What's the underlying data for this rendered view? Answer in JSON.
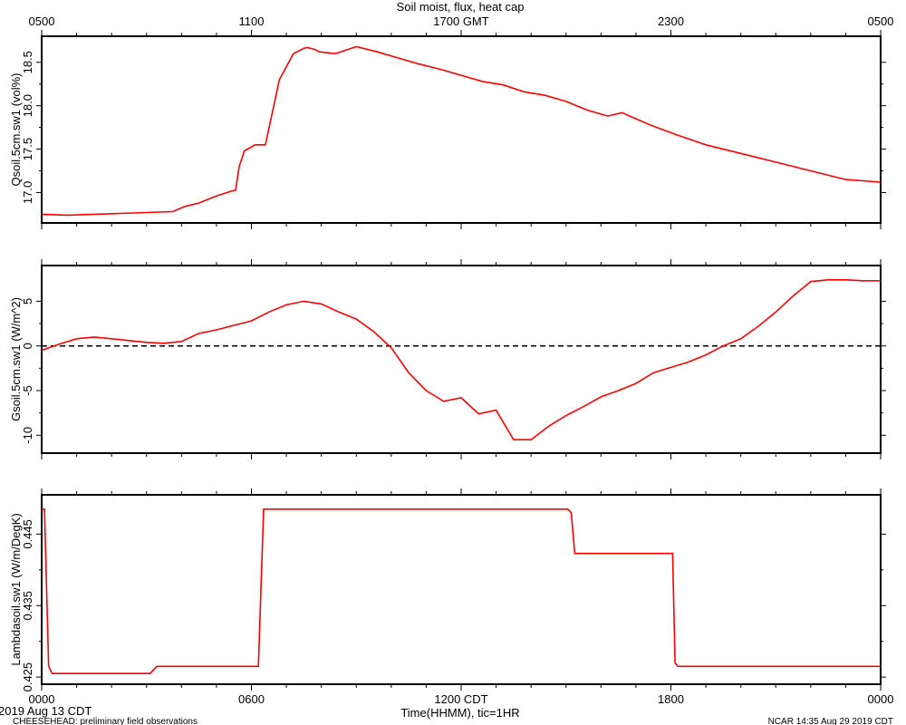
{
  "chart_data": {
    "type": "line",
    "title": "Soil moist, flux, heat cap",
    "top_axis_ticks": [
      "0500",
      "1100",
      "1700 GMT",
      "2300",
      "0500"
    ],
    "bottom_axis_ticks": [
      "0000",
      "0600",
      "1200 CDT",
      "1800",
      "0000"
    ],
    "xlabel": "Time(HHMM), tic=1HR",
    "date_label": "2019 Aug 13 CDT",
    "footer_left": "CHEESEHEAD: preliminary field observations",
    "footer_right": "NCAR 14:35 Aug 29 2019 CDT",
    "line_color": "#ff0000",
    "panels": [
      {
        "ylabel": "Qsoil.5cm.sw1 (vol%)",
        "ylim": [
          16.65,
          18.8
        ],
        "yticks": [
          17.0,
          17.5,
          18.0,
          18.5
        ],
        "ytick_labels": [
          "17.0",
          "17.5",
          "18.0",
          "18.5"
        ],
        "zero_line": false,
        "x": [
          0,
          0.75,
          1.5,
          2.25,
          3.0,
          3.75,
          4.1,
          4.5,
          5.0,
          5.3,
          5.55,
          5.65,
          5.8,
          6.1,
          6.4,
          6.8,
          7.2,
          7.45,
          7.5,
          7.6,
          7.8,
          7.95,
          8.4,
          9.0,
          9.6,
          10.2,
          10.8,
          11.4,
          12.0,
          12.6,
          13.2,
          13.8,
          14.4,
          15.0,
          15.6,
          16.2,
          16.6,
          17.4,
          18.2,
          19.0,
          20.0,
          21.0,
          22.0,
          23.0,
          24.0
        ],
        "y": [
          16.75,
          16.74,
          16.75,
          16.76,
          16.77,
          16.78,
          16.84,
          16.88,
          16.96,
          17.0,
          17.03,
          17.3,
          17.48,
          17.55,
          17.55,
          18.3,
          18.6,
          18.65,
          18.66,
          18.67,
          18.65,
          18.62,
          18.6,
          18.68,
          18.62,
          18.55,
          18.48,
          18.42,
          18.35,
          18.28,
          18.24,
          18.16,
          18.12,
          18.05,
          17.95,
          17.88,
          17.92,
          17.78,
          17.66,
          17.55,
          17.45,
          17.35,
          17.25,
          17.15,
          17.12
        ]
      },
      {
        "ylabel": "Gsoil.5cm.sw1 (W/m^2)",
        "ylim": [
          -12.0,
          9.0
        ],
        "yticks": [
          -10,
          -5,
          0,
          5
        ],
        "ytick_labels": [
          "-10",
          "-5",
          "0",
          "5"
        ],
        "zero_line": true,
        "x": [
          0,
          0.5,
          1.0,
          1.5,
          2.0,
          2.5,
          3.0,
          3.5,
          4.0,
          4.5,
          5.0,
          5.5,
          6.0,
          6.5,
          7.0,
          7.5,
          8.0,
          8.5,
          9.0,
          9.5,
          10.0,
          10.5,
          11.0,
          11.5,
          12.0,
          12.5,
          13.0,
          13.5,
          14.0,
          14.5,
          15.0,
          15.5,
          16.0,
          16.5,
          17.0,
          17.5,
          18.0,
          18.5,
          19.0,
          19.5,
          20.0,
          20.5,
          21.0,
          21.5,
          22.0,
          22.5,
          23.0,
          23.5,
          24.0
        ],
        "y": [
          -0.5,
          0.2,
          0.8,
          1.0,
          0.8,
          0.6,
          0.4,
          0.3,
          0.5,
          1.4,
          1.8,
          2.3,
          2.8,
          3.8,
          4.6,
          5.0,
          4.7,
          3.8,
          3.0,
          1.6,
          -0.2,
          -3.0,
          -5.0,
          -6.2,
          -5.8,
          -7.6,
          -7.2,
          -10.5,
          -10.5,
          -9.0,
          -7.8,
          -6.8,
          -5.7,
          -5.0,
          -4.2,
          -3.0,
          -2.4,
          -1.8,
          -1.0,
          0.0,
          0.8,
          2.2,
          3.8,
          5.6,
          7.2,
          7.4,
          7.4,
          7.3,
          7.3
        ],
        "y_x_positions_note": ""
      },
      {
        "ylabel": "Lambdasoil.sw1 (W/m/DegK)",
        "ylim": [
          0.424,
          0.4505
        ],
        "yticks": [
          0.425,
          0.435,
          0.445
        ],
        "ytick_labels": [
          "0.425",
          "0.435",
          "0.445"
        ],
        "zero_line": false,
        "x": [
          0,
          0.08,
          0.2,
          0.3,
          3.1,
          3.3,
          6.2,
          6.35,
          6.45,
          15.05,
          15.15,
          15.25,
          18.05,
          18.12,
          18.2,
          24.0
        ],
        "y": [
          0.4485,
          0.4485,
          0.4265,
          0.4255,
          0.4255,
          0.4265,
          0.4265,
          0.4485,
          0.4485,
          0.4485,
          0.448,
          0.4423,
          0.4423,
          0.427,
          0.4265,
          0.4265
        ]
      }
    ]
  }
}
